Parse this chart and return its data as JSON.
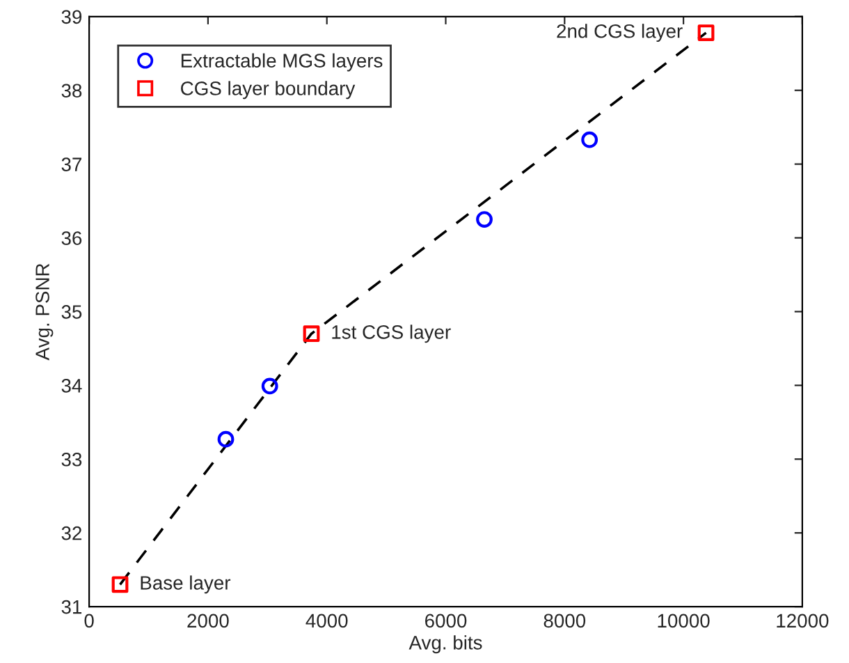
{
  "chart_data": {
    "type": "scatter",
    "xlabel": "Avg. bits",
    "ylabel": "Avg. PSNR",
    "xlim": [
      0,
      12000
    ],
    "xticks": [
      0,
      2000,
      4000,
      6000,
      8000,
      10000,
      12000
    ],
    "ylim": [
      31,
      39
    ],
    "yticks": [
      31,
      32,
      33,
      34,
      35,
      36,
      37,
      38,
      39
    ],
    "grid": false,
    "legend": "top left",
    "series": [
      {
        "type": "line",
        "color": "#000000",
        "line_style": "dashed",
        "marker": "none",
        "x": [
          520,
          3740,
          10380
        ],
        "values": [
          31.3,
          34.7,
          38.78
        ]
      },
      {
        "name": "Extractable MGS layers",
        "color": "#0000ff",
        "marker": "circle",
        "x": [
          2300,
          3040,
          6650,
          8420
        ],
        "values": [
          33.27,
          33.99,
          36.25,
          37.33
        ]
      },
      {
        "name": "CGS layer boundary",
        "color": "#ff0000",
        "marker": "square",
        "x": [
          520,
          3740,
          10380
        ],
        "values": [
          31.3,
          34.7,
          38.78
        ]
      }
    ],
    "annotations": [
      {
        "text": "Base layer",
        "x": 520,
        "y": 31.3
      },
      {
        "text": "1st CGS layer",
        "x": 3740,
        "y": 34.7
      },
      {
        "text": "2nd CGS layer",
        "x": 10380,
        "y": 38.78
      }
    ]
  }
}
